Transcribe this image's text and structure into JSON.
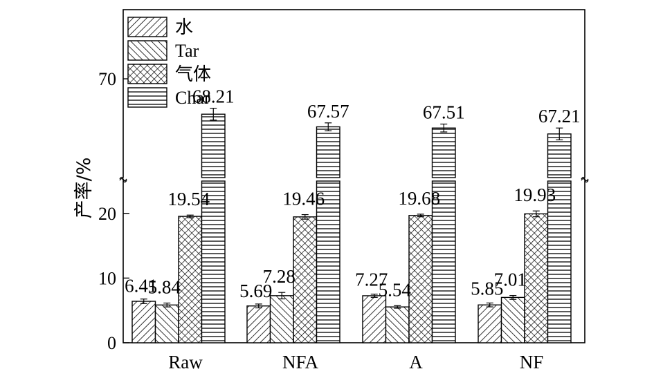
{
  "chart_data": {
    "type": "bar",
    "categories": [
      "Raw",
      "NFA",
      "A",
      "NF"
    ],
    "series": [
      {
        "name": "水",
        "values": [
          6.41,
          5.69,
          7.27,
          5.85
        ],
        "errors": [
          0.35,
          0.3,
          0.25,
          0.3
        ],
        "pattern": "diag-right"
      },
      {
        "name": "Tar",
        "values": [
          5.84,
          7.28,
          5.54,
          7.01
        ],
        "errors": [
          0.3,
          0.5,
          0.2,
          0.3
        ],
        "pattern": "diag-left"
      },
      {
        "name": "气体",
        "values": [
          19.54,
          19.46,
          19.68,
          19.93
        ],
        "errors": [
          0.2,
          0.35,
          0.2,
          0.45
        ],
        "pattern": "crosshatch"
      },
      {
        "name": "Char",
        "values": [
          68.21,
          67.57,
          67.51,
          67.21
        ],
        "errors": [
          0.3,
          0.2,
          0.2,
          0.3
        ],
        "pattern": "horizontal"
      }
    ],
    "data_labels": [
      [
        "6.41",
        "5.84",
        "19.54",
        "68.21"
      ],
      [
        "5.69",
        "7.28",
        "19.46",
        "67.57"
      ],
      [
        "7.27",
        "5.54",
        "19.68",
        "67.51"
      ],
      [
        "5.85",
        "7.01",
        "19.93",
        "67.21"
      ]
    ],
    "ylabel": "产率/%",
    "xlabel": "",
    "axis_break": {
      "lower": [
        0,
        25
      ],
      "upper": [
        65,
        73.5
      ]
    },
    "yticks_lower": [
      0,
      10,
      20
    ],
    "yticks_upper": [
      70
    ],
    "legend_position": "top-left",
    "grid": false
  }
}
